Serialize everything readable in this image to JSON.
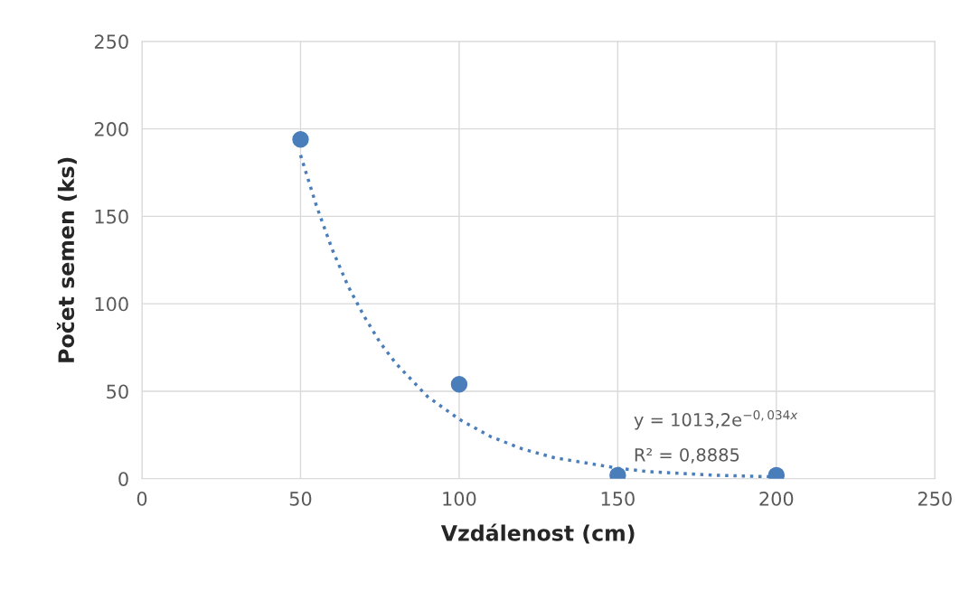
{
  "chart_data": {
    "type": "scatter",
    "xlabel": "Vzdálenost (cm)",
    "ylabel": "Počet semen (ks)",
    "series": [
      {
        "color": "#4a7ebb",
        "x": [
          50,
          100,
          150,
          200
        ],
        "values": [
          194,
          54,
          2,
          2
        ],
        "marker": "circle"
      },
      {
        "type": "line",
        "color": "#4a7ebb",
        "line_style": "dotted",
        "marker": "none",
        "x": [
          50,
          55,
          60,
          65,
          70,
          75,
          80,
          90,
          100,
          110,
          120,
          130,
          140,
          150,
          160,
          170,
          180,
          190,
          200
        ],
        "values": [
          185,
          156,
          131,
          110,
          93,
          78,
          66,
          47,
          34,
          24,
          17,
          12,
          9,
          6,
          4,
          3,
          2,
          1.5,
          1
        ]
      }
    ],
    "xlim": [
      0,
      250
    ],
    "xticks": [
      0,
      50,
      100,
      150,
      200,
      250
    ],
    "ylim": [
      0,
      250
    ],
    "yticks": [
      0,
      50,
      100,
      150,
      200,
      250
    ],
    "grid": true,
    "annotations": [
      "y = 1013,2e$^{−0,034x}$",
      "R² = 0,8885"
    ]
  }
}
